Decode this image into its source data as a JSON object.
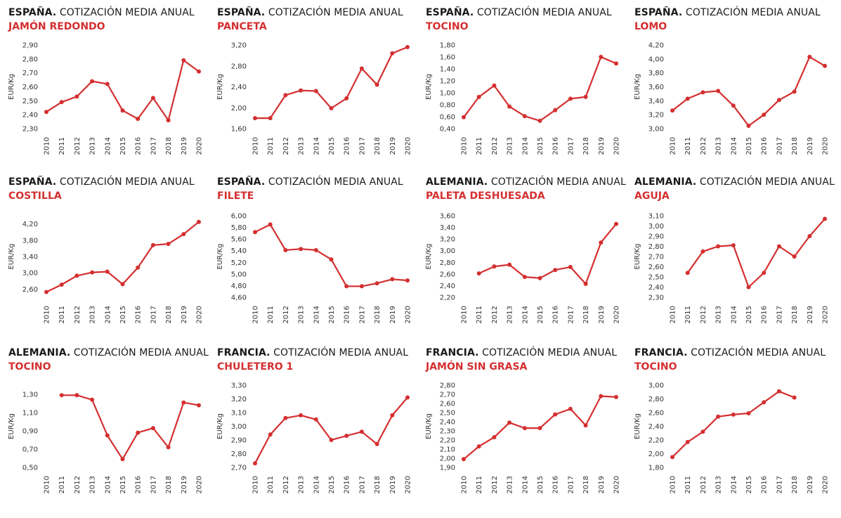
{
  "colors": {
    "line": "#d42f30",
    "title": "#1a1a1a",
    "accent": "#d42f30"
  },
  "chart_data": [
    {
      "type": "line",
      "title_country": "ESPAÑA.",
      "title_rest": " COTIZACIÓN MEDIA ANUAL",
      "subtitle": "JAMÓN REDONDO",
      "ylabel": "EUR/Kg",
      "yticks": [
        "2,30",
        "2,40",
        "2,50",
        "2,60",
        "2,70",
        "2,80",
        "2,90"
      ],
      "ylim": [
        2.3,
        2.9
      ],
      "x": [
        "2010",
        "2011",
        "2012",
        "2013",
        "2014",
        "2015",
        "2016",
        "2017",
        "2018",
        "2019",
        "2020"
      ],
      "values": [
        2.42,
        2.49,
        2.53,
        2.64,
        2.62,
        2.43,
        2.37,
        2.52,
        2.36,
        2.79,
        2.71
      ]
    },
    {
      "type": "line",
      "title_country": "ESPAÑA.",
      "title_rest": " COTIZACIÓN MEDIA ANUAL",
      "subtitle": "PANCETA",
      "ylabel": "EUR/Kg",
      "yticks": [
        "1,60",
        "2,00",
        "2,40",
        "2,80",
        "3,20"
      ],
      "ylim": [
        1.6,
        3.2
      ],
      "x": [
        "2010",
        "2011",
        "2012",
        "2013",
        "2014",
        "2015",
        "2016",
        "2017",
        "2018",
        "2019",
        "2020"
      ],
      "values": [
        1.8,
        1.8,
        2.24,
        2.33,
        2.32,
        1.99,
        2.18,
        2.75,
        2.44,
        3.04,
        3.16
      ]
    },
    {
      "type": "line",
      "title_country": "ESPAÑA.",
      "title_rest": " COTIZACIÓN MEDIA ANUAL",
      "subtitle": "TOCINO",
      "ylabel": "EUR/Kg",
      "yticks": [
        "0,40",
        "0,60",
        "0,80",
        "1,00",
        "1,20",
        "1,40",
        "1,60",
        "1,80"
      ],
      "ylim": [
        0.4,
        1.8
      ],
      "x": [
        "2010",
        "2011",
        "2012",
        "2013",
        "2014",
        "2015",
        "2016",
        "2017",
        "2018",
        "2019",
        "2020"
      ],
      "values": [
        0.59,
        0.93,
        1.12,
        0.77,
        0.61,
        0.53,
        0.71,
        0.9,
        0.93,
        1.6,
        1.49
      ]
    },
    {
      "type": "line",
      "title_country": "ESPAÑA.",
      "title_rest": " COTIZACIÓN MEDIA ANUAL",
      "subtitle": "LOMO",
      "ylabel": "EUR/Kg",
      "yticks": [
        "3,00",
        "3,20",
        "3,40",
        "3,60",
        "3,80",
        "4,00",
        "4,20"
      ],
      "ylim": [
        3.0,
        4.2
      ],
      "x": [
        "2010",
        "2011",
        "2012",
        "2013",
        "2014",
        "2015",
        "2016",
        "2017",
        "2018",
        "2019",
        "2020"
      ],
      "values": [
        3.26,
        3.43,
        3.52,
        3.54,
        3.33,
        3.04,
        3.2,
        3.41,
        3.53,
        4.03,
        3.9
      ]
    },
    {
      "type": "line",
      "title_country": "ESPAÑA.",
      "title_rest": " COTIZACIÓN MEDIA ANUAL",
      "subtitle": "COSTILLA",
      "ylabel": "EUR/Kg",
      "yticks": [
        "2,60",
        "3,00",
        "3,40",
        "3,80",
        "4,20"
      ],
      "ylim": [
        2.4,
        4.4
      ],
      "x": [
        "2010",
        "2011",
        "2012",
        "2013",
        "2014",
        "2015",
        "2016",
        "2017",
        "2018",
        "2019",
        "2020"
      ],
      "values": [
        2.53,
        2.71,
        2.93,
        3.01,
        3.03,
        2.72,
        3.13,
        3.68,
        3.71,
        3.95,
        4.25
      ]
    },
    {
      "type": "line",
      "title_country": "ESPAÑA.",
      "title_rest": " COTIZACIÓN MEDIA ANUAL",
      "subtitle": "FILETE",
      "ylabel": "EUR/Kg",
      "yticks": [
        "4,60",
        "4,80",
        "5,00",
        "5,20",
        "5,40",
        "5,60",
        "5,80",
        "6,00"
      ],
      "ylim": [
        4.6,
        6.0
      ],
      "x": [
        "2010",
        "2011",
        "2012",
        "2013",
        "2014",
        "2015",
        "2016",
        "2017",
        "2018",
        "2019",
        "2020"
      ],
      "values": [
        5.72,
        5.85,
        5.41,
        5.43,
        5.41,
        5.25,
        4.79,
        4.79,
        4.84,
        4.91,
        4.89
      ]
    },
    {
      "type": "line",
      "title_country": "ALEMANIA.",
      "title_rest": " COTIZACIÓN MEDIA ANUAL",
      "subtitle": "PALETA DESHUESADA",
      "ylabel": "EUR/Kg",
      "yticks": [
        "2,20",
        "2,40",
        "2,60",
        "2,80",
        "3,00",
        "3,20",
        "3,40",
        "3,60"
      ],
      "ylim": [
        2.2,
        3.6
      ],
      "x": [
        "2010",
        "2011",
        "2012",
        "2013",
        "2014",
        "2015",
        "2016",
        "2017",
        "2018",
        "2019",
        "2020"
      ],
      "values": [
        null,
        2.61,
        2.73,
        2.76,
        2.55,
        2.53,
        2.67,
        2.72,
        2.43,
        3.14,
        3.46
      ]
    },
    {
      "type": "line",
      "title_country": "ALEMANIA.",
      "title_rest": " COTIZACIÓN MEDIA ANUAL",
      "subtitle": "AGUJA",
      "ylabel": "EUR/Kg",
      "yticks": [
        "2,30",
        "2,40",
        "2,50",
        "2,60",
        "2,70",
        "2,80",
        "2,90",
        "3,00",
        "3,10"
      ],
      "ylim": [
        2.3,
        3.1
      ],
      "x": [
        "2010",
        "2011",
        "2012",
        "2013",
        "2014",
        "2015",
        "2016",
        "2017",
        "2018",
        "2019",
        "2020"
      ],
      "values": [
        null,
        2.54,
        2.75,
        2.8,
        2.81,
        2.4,
        2.54,
        2.8,
        2.7,
        2.9,
        3.07
      ]
    },
    {
      "type": "line",
      "title_country": "ALEMANIA.",
      "title_rest": " COTIZACIÓN MEDIA ANUAL",
      "subtitle": "TOCINO",
      "ylabel": "EUR/Kg",
      "yticks": [
        "0,50",
        "0,70",
        "0,90",
        "1,10",
        "1,30"
      ],
      "ylim": [
        0.5,
        1.4
      ],
      "x": [
        "2010",
        "2011",
        "2012",
        "2013",
        "2014",
        "2015",
        "2016",
        "2017",
        "2018",
        "2019",
        "2020"
      ],
      "values": [
        null,
        1.29,
        1.29,
        1.24,
        0.85,
        0.59,
        0.88,
        0.93,
        0.72,
        1.21,
        1.18
      ]
    },
    {
      "type": "line",
      "title_country": "FRANCIA.",
      "title_rest": " COTIZACIÓN MEDIA ANUAL",
      "subtitle": "CHULETERO 1",
      "ylabel": "EUR/Kg",
      "yticks": [
        "2,70",
        "2,80",
        "2,90",
        "3,00",
        "3,10",
        "3,20",
        "3,30"
      ],
      "ylim": [
        2.7,
        3.3
      ],
      "x": [
        "2010",
        "2011",
        "2012",
        "2013",
        "2014",
        "2015",
        "2016",
        "2017",
        "2018",
        "2019",
        "2020"
      ],
      "values": [
        2.73,
        2.94,
        3.06,
        3.08,
        3.05,
        2.9,
        2.93,
        2.96,
        2.87,
        3.08,
        3.21
      ]
    },
    {
      "type": "line",
      "title_country": "FRANCIA.",
      "title_rest": " COTIZACIÓN MEDIA ANUAL",
      "subtitle": "JAMÓN SIN GRASA",
      "ylabel": "EUR/Kg",
      "yticks": [
        "1,90",
        "2,00",
        "2,10",
        "2,20",
        "2,30",
        "2,40",
        "2,50",
        "2,60",
        "2,70",
        "2,80"
      ],
      "ylim": [
        1.9,
        2.8
      ],
      "x": [
        "2010",
        "2011",
        "2012",
        "2013",
        "2014",
        "2015",
        "2016",
        "2017",
        "2018",
        "2019",
        "2020"
      ],
      "values": [
        1.99,
        2.13,
        2.23,
        2.39,
        2.33,
        2.33,
        2.48,
        2.54,
        2.36,
        2.68,
        2.67
      ]
    },
    {
      "type": "line",
      "title_country": "FRANCIA.",
      "title_rest": " COTIZACIÓN MEDIA ANUAL",
      "subtitle": "TOCINO",
      "ylabel": "EUR/Kg",
      "yticks": [
        "1,80",
        "2,00",
        "2,20",
        "2,40",
        "2,60",
        "2,80",
        "3,00"
      ],
      "ylim": [
        1.8,
        3.0
      ],
      "x": [
        "2010",
        "2011",
        "2012",
        "2013",
        "2014",
        "2015",
        "2016",
        "2017",
        "2018",
        "2019",
        "2020"
      ],
      "values": [
        1.95,
        2.17,
        2.32,
        2.54,
        2.57,
        2.59,
        2.75,
        2.91,
        2.82,
        null,
        null
      ]
    }
  ]
}
